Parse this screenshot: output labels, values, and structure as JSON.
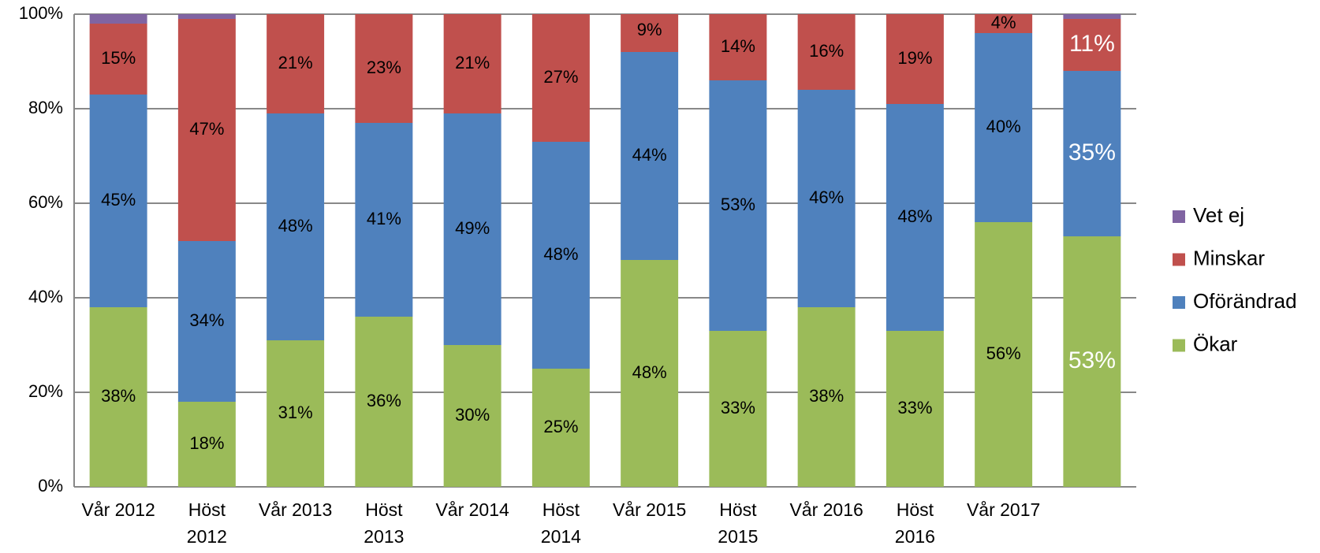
{
  "chart_data": {
    "type": "stacked_bar",
    "categories": [
      "Vår 2012",
      "Höst 2012",
      "Vår 2013",
      "Höst 2013",
      "Vår 2014",
      "Höst 2014",
      "Vår 2015",
      "Höst 2015",
      "Vår 2016",
      "Höst 2016",
      "Vår 2017",
      null
    ],
    "series": [
      {
        "name": "Ökar",
        "color": "#9bbb59",
        "values": [
          38,
          18,
          31,
          36,
          30,
          25,
          48,
          33,
          38,
          33,
          56,
          53
        ],
        "value_labels": [
          "38%",
          "18%",
          "31%",
          "36%",
          "30%",
          "25%",
          "48%",
          "33%",
          "38%",
          "33%",
          "56%",
          "53%"
        ]
      },
      {
        "name": "Oförändrad",
        "color": "#4f81bd",
        "values": [
          45,
          34,
          48,
          41,
          49,
          48,
          44,
          53,
          46,
          48,
          40,
          35
        ],
        "value_labels": [
          "45%",
          "34%",
          "48%",
          "41%",
          "49%",
          "48%",
          "44%",
          "53%",
          "46%",
          "48%",
          "40%",
          "35%"
        ]
      },
      {
        "name": "Minskar",
        "color": "#c0504d",
        "values": [
          15,
          47,
          21,
          23,
          21,
          27,
          9,
          14,
          16,
          19,
          4,
          11
        ],
        "value_labels": [
          "15%",
          "47%",
          "21%",
          "23%",
          "21%",
          "27%",
          "9%",
          "14%",
          "16%",
          "19%",
          "4%",
          "11%"
        ]
      },
      {
        "name": "Vet ej",
        "color": "#8064a2",
        "values": [
          2,
          1,
          0,
          0,
          0,
          0,
          0,
          0,
          0,
          0,
          0,
          1
        ]
      }
    ],
    "ylim": [
      0,
      100
    ],
    "yticks": [
      {
        "value": 0,
        "label": "0%"
      },
      {
        "value": 20,
        "label": "20%"
      },
      {
        "value": 40,
        "label": "40%"
      },
      {
        "value": 60,
        "label": "60%"
      },
      {
        "value": 80,
        "label": "80%"
      },
      {
        "value": 100,
        "label": "100%"
      }
    ],
    "grid": true,
    "legend": "right"
  }
}
